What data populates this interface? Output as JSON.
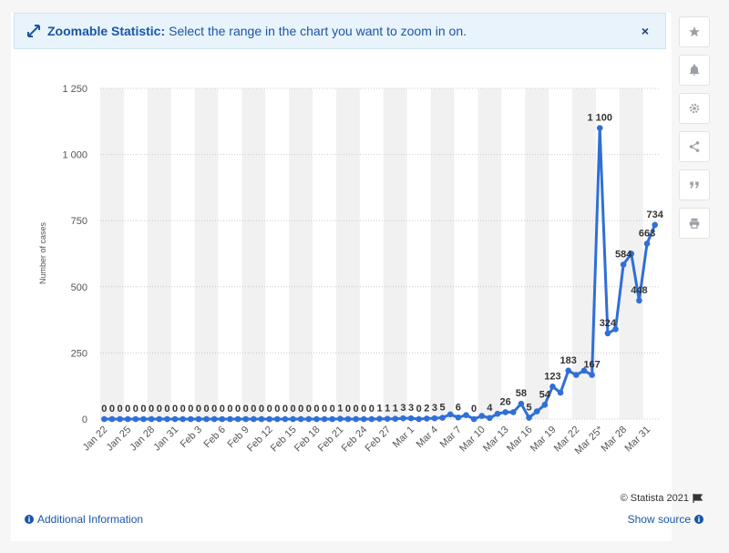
{
  "banner": {
    "title": "Zoomable Statistic:",
    "text": "Select the range in the chart you want to zoom in on.",
    "close": "×"
  },
  "sidebar": {
    "icons": [
      "star-icon",
      "bell-icon",
      "gear-icon",
      "share-icon",
      "quote-icon",
      "print-icon"
    ]
  },
  "footer": {
    "credit": "© Statista 2021",
    "additional_info": "Additional Information",
    "show_source": "Show source"
  },
  "colors": {
    "series": "#2f6fd6",
    "banner_text": "#1a56a6",
    "band": "#f1f1f1"
  },
  "chart_data": {
    "type": "line",
    "title": "",
    "xlabel": "",
    "ylabel": "Number of cases",
    "ylim": [
      0,
      1250
    ],
    "yticks": [
      0,
      250,
      500,
      750,
      1000,
      1250
    ],
    "ytick_labels": [
      "0",
      "250",
      "500",
      "750",
      "1 000",
      "1 250"
    ],
    "grid": true,
    "x_tick_labels": [
      "Jan 22",
      "Jan 25",
      "Jan 28",
      "Jan 31",
      "Feb 3",
      "Feb 6",
      "Feb 9",
      "Feb 12",
      "Feb 15",
      "Feb 18",
      "Feb 21",
      "Feb 24",
      "Feb 27",
      "Mar 1",
      "Mar 4",
      "Mar 7",
      "Mar 10",
      "Mar 13",
      "Mar 16",
      "Mar 19",
      "Mar 22",
      "Mar 25*",
      "Mar 28",
      "Mar 31"
    ],
    "x": [
      "Jan 22",
      "Jan 23",
      "Jan 24",
      "Jan 25",
      "Jan 26",
      "Jan 27",
      "Jan 28",
      "Jan 29",
      "Jan 30",
      "Jan 31",
      "Feb 1",
      "Feb 2",
      "Feb 3",
      "Feb 4",
      "Feb 5",
      "Feb 6",
      "Feb 7",
      "Feb 8",
      "Feb 9",
      "Feb 10",
      "Feb 11",
      "Feb 12",
      "Feb 13",
      "Feb 14",
      "Feb 15",
      "Feb 16",
      "Feb 17",
      "Feb 18",
      "Feb 19",
      "Feb 20",
      "Feb 21",
      "Feb 22",
      "Feb 23",
      "Feb 24",
      "Feb 25",
      "Feb 26",
      "Feb 27",
      "Feb 28",
      "Feb 29",
      "Mar 1",
      "Mar 2",
      "Mar 3",
      "Mar 4",
      "Mar 5",
      "Mar 6",
      "Mar 7",
      "Mar 8",
      "Mar 9",
      "Mar 10",
      "Mar 11",
      "Mar 12",
      "Mar 13",
      "Mar 14",
      "Mar 15",
      "Mar 16",
      "Mar 17",
      "Mar 18",
      "Mar 19",
      "Mar 20",
      "Mar 21",
      "Mar 22",
      "Mar 23",
      "Mar 24",
      "Mar 25*",
      "Mar 26",
      "Mar 27",
      "Mar 28",
      "Mar 29",
      "Mar 30",
      "Mar 31",
      "Apr 1"
    ],
    "series": [
      {
        "values": [
          0,
          0,
          0,
          0,
          0,
          0,
          0,
          0,
          0,
          0,
          0,
          0,
          0,
          0,
          0,
          0,
          0,
          0,
          0,
          0,
          0,
          0,
          0,
          0,
          0,
          0,
          0,
          0,
          0,
          0,
          1,
          0,
          0,
          0,
          0,
          1,
          1,
          1,
          3,
          3,
          0,
          2,
          3,
          5,
          18,
          6,
          15,
          0,
          12,
          4,
          20,
          26,
          26,
          58,
          5,
          29,
          54,
          123,
          100,
          183,
          167,
          183,
          167,
          1100,
          324,
          340,
          584,
          625,
          448,
          663,
          734
        ],
        "labels": [
          "0",
          "0",
          "0",
          "0",
          "0",
          "0",
          "0",
          "0",
          "0",
          "0",
          "0",
          "0",
          "0",
          "0",
          "0",
          "0",
          "0",
          "0",
          "0",
          "0",
          "0",
          "0",
          "0",
          "0",
          "0",
          "0",
          "0",
          "0",
          "0",
          "0",
          "1",
          "0",
          "0",
          "0",
          "0",
          "1",
          "1",
          "1",
          "3",
          "3",
          "0",
          "2",
          "3",
          "5",
          "",
          "6",
          "",
          "0",
          "",
          "4",
          "",
          "26",
          "",
          "58",
          "5",
          "",
          "54",
          "123",
          "",
          "183",
          "",
          "",
          "167",
          "1 100",
          "324",
          "",
          "584",
          "",
          "448",
          "663",
          "734"
        ]
      }
    ]
  }
}
